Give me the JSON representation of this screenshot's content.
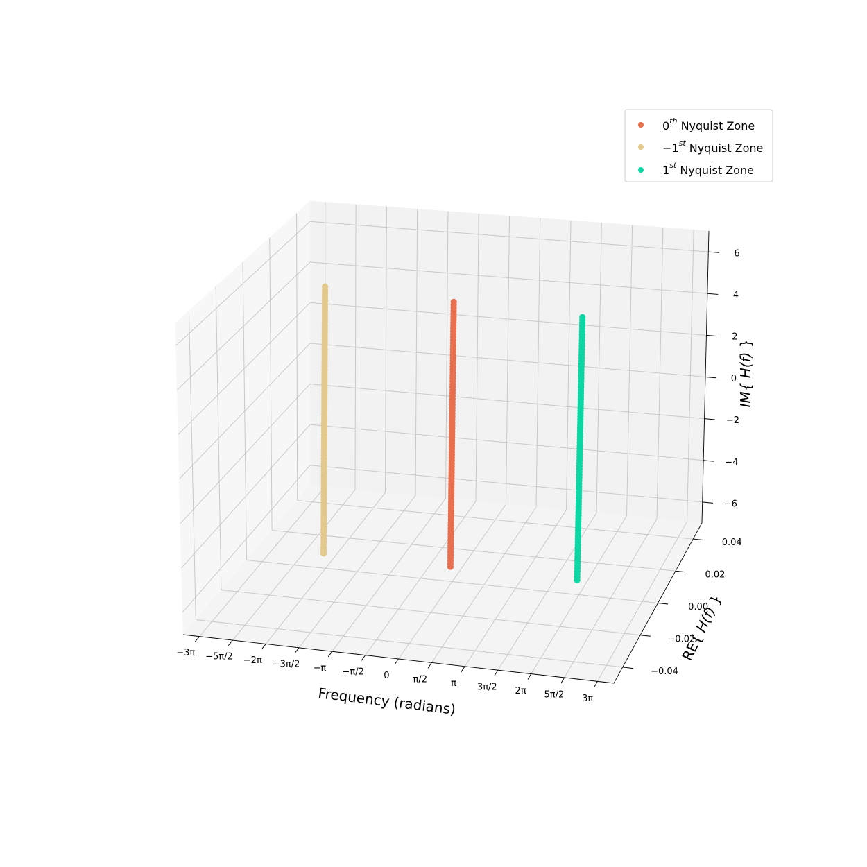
{
  "chart_data": {
    "type": "scatter",
    "projection": "3d",
    "grid": true,
    "legend_position": "top-right",
    "axes": {
      "x": {
        "label": "Frequency (radians)",
        "ticks": [
          {
            "value": -9.4248,
            "label": "−3π"
          },
          {
            "value": -7.854,
            "label": "−5π/2"
          },
          {
            "value": -6.2832,
            "label": "−2π"
          },
          {
            "value": -4.7124,
            "label": "−3π/2"
          },
          {
            "value": -3.1416,
            "label": "−π"
          },
          {
            "value": -1.5708,
            "label": "−π/2"
          },
          {
            "value": 0,
            "label": "0"
          },
          {
            "value": 1.5708,
            "label": "π/2"
          },
          {
            "value": 3.1416,
            "label": "π"
          },
          {
            "value": 4.7124,
            "label": "3π/2"
          },
          {
            "value": 6.2832,
            "label": "2π"
          },
          {
            "value": 7.854,
            "label": "5π/2"
          },
          {
            "value": 9.4248,
            "label": "3π"
          }
        ]
      },
      "y": {
        "label_prefix": "RE{ ",
        "label_func": "H(f)",
        "label_suffix": " }",
        "ticks": [
          {
            "value": -0.04,
            "label": "−0.04"
          },
          {
            "value": -0.02,
            "label": "−0.02"
          },
          {
            "value": 0,
            "label": "0.00"
          },
          {
            "value": 0.02,
            "label": "0.02"
          },
          {
            "value": 0.04,
            "label": "0.04"
          }
        ]
      },
      "z": {
        "label_prefix": "IM{ ",
        "label_func": "H(f)",
        "label_suffix": " }",
        "ticks": [
          {
            "value": -6,
            "label": "−6"
          },
          {
            "value": -4,
            "label": "−4"
          },
          {
            "value": -2,
            "label": "−2"
          },
          {
            "value": 0,
            "label": "0"
          },
          {
            "value": 2,
            "label": "2"
          },
          {
            "value": 4,
            "label": "4"
          },
          {
            "value": 6,
            "label": "6"
          }
        ]
      }
    },
    "series": [
      {
        "name_base": "0",
        "name_sup": "th",
        "name_rest": " Nyquist Zone",
        "color": "#e8704f",
        "x_start": -0.09,
        "x_end": 0.09,
        "z_start": -6.3,
        "z_end": 6.3
      },
      {
        "name_base": "−1",
        "name_sup": "st",
        "name_rest": " Nyquist Zone",
        "color": "#e3c98c",
        "x_start": -6.373,
        "x_end": -6.193,
        "z_start": -6.3,
        "z_end": 6.3
      },
      {
        "name_base": "1",
        "name_sup": "st",
        "name_rest": " Nyquist Zone",
        "color": "#0cd6a3",
        "x_start": 6.193,
        "x_end": 6.373,
        "z_start": -6.3,
        "z_end": 6.3
      }
    ]
  }
}
